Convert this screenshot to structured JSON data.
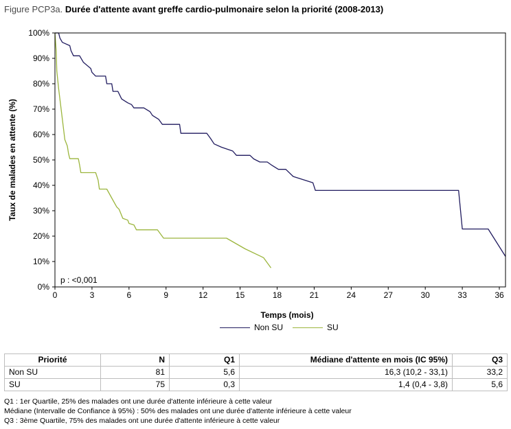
{
  "figure": {
    "label": "Figure PCP3a.",
    "title": "Durée d'attente avant greffe cardio-pulmonaire selon la priorité (2008-2013)"
  },
  "chart_data": {
    "type": "line",
    "title": "Durée d'attente avant greffe cardio-pulmonaire selon la priorité (2008-2013)",
    "xlabel": "Temps (mois)",
    "ylabel": "Taux de malades en attente (%)",
    "xlim": [
      0,
      36.5
    ],
    "ylim": [
      0,
      100
    ],
    "x_ticks": [
      0,
      3,
      6,
      9,
      12,
      15,
      18,
      21,
      24,
      27,
      30,
      33,
      36
    ],
    "y_ticks": [
      0,
      10,
      20,
      30,
      40,
      50,
      60,
      70,
      80,
      90,
      100
    ],
    "y_tick_labels": [
      "0%",
      "10%",
      "20%",
      "30%",
      "40%",
      "50%",
      "60%",
      "70%",
      "80%",
      "90%",
      "100%"
    ],
    "annotation": "p : <0,001",
    "legend_position": "bottom",
    "grid": false,
    "series": [
      {
        "name": "Non SU",
        "color": "#1f1a5e",
        "points": [
          [
            0,
            100
          ],
          [
            0.3,
            100
          ],
          [
            0.4,
            98
          ],
          [
            0.6,
            96.3
          ],
          [
            1.2,
            95
          ],
          [
            1.3,
            93
          ],
          [
            1.5,
            91
          ],
          [
            2.0,
            91
          ],
          [
            2.3,
            88.5
          ],
          [
            2.9,
            86
          ],
          [
            3.0,
            84.5
          ],
          [
            3.3,
            83
          ],
          [
            4.1,
            83
          ],
          [
            4.2,
            80
          ],
          [
            4.6,
            80
          ],
          [
            4.7,
            77
          ],
          [
            5.1,
            77
          ],
          [
            5.4,
            74
          ],
          [
            5.9,
            72.5
          ],
          [
            6.2,
            71.8
          ],
          [
            6.4,
            70.5
          ],
          [
            7.2,
            70.5
          ],
          [
            7.7,
            69
          ],
          [
            7.9,
            67.5
          ],
          [
            8.4,
            66
          ],
          [
            8.7,
            64
          ],
          [
            10.1,
            64
          ],
          [
            10.2,
            60.5
          ],
          [
            12.3,
            60.5
          ],
          [
            12.6,
            58.5
          ],
          [
            12.9,
            56.3
          ],
          [
            13.5,
            55
          ],
          [
            14.4,
            53.5
          ],
          [
            14.7,
            51.8
          ],
          [
            15.8,
            51.8
          ],
          [
            16.1,
            50.4
          ],
          [
            16.6,
            49.2
          ],
          [
            17.2,
            49.2
          ],
          [
            17.6,
            47.8
          ],
          [
            18.1,
            46.3
          ],
          [
            18.7,
            46.3
          ],
          [
            19.3,
            43.5
          ],
          [
            20.9,
            41
          ],
          [
            21.1,
            38
          ],
          [
            32.7,
            38
          ],
          [
            33.0,
            22.8
          ],
          [
            35.1,
            22.8
          ],
          [
            36.5,
            12
          ]
        ]
      },
      {
        "name": "SU",
        "color": "#9bb53c",
        "points": [
          [
            0,
            100
          ],
          [
            0.1,
            93
          ],
          [
            0.15,
            85
          ],
          [
            0.3,
            78
          ],
          [
            0.5,
            70
          ],
          [
            0.7,
            62
          ],
          [
            0.8,
            58
          ],
          [
            1.0,
            55.5
          ],
          [
            1.1,
            52.5
          ],
          [
            1.2,
            50.5
          ],
          [
            1.9,
            50.5
          ],
          [
            2.0,
            48
          ],
          [
            2.1,
            45
          ],
          [
            3.3,
            45
          ],
          [
            3.5,
            42
          ],
          [
            3.6,
            38.5
          ],
          [
            4.2,
            38.5
          ],
          [
            4.6,
            35
          ],
          [
            5.0,
            31.5
          ],
          [
            5.2,
            30.5
          ],
          [
            5.5,
            27
          ],
          [
            5.9,
            26.3
          ],
          [
            6.0,
            25
          ],
          [
            6.4,
            24.4
          ],
          [
            6.6,
            22.5
          ],
          [
            8.3,
            22.5
          ],
          [
            8.8,
            19.2
          ],
          [
            13.9,
            19.2
          ],
          [
            15.4,
            15
          ],
          [
            16.9,
            11.5
          ],
          [
            17.5,
            7.5
          ]
        ]
      }
    ]
  },
  "table": {
    "headers": [
      "Priorité",
      "N",
      "Q1",
      "Médiane d'attente en mois (IC 95%)",
      "Q3"
    ],
    "rows": [
      [
        "Non SU",
        "81",
        "5,6",
        "16,3 (10,2 - 33,1)",
        "33,2"
      ],
      [
        "SU",
        "75",
        "0,3",
        "1,4 (0,4 - 3,8)",
        "5,6"
      ]
    ]
  },
  "footnotes": [
    "Q1 : 1er Quartile, 25% des malades ont une durée d'attente inférieure à cette valeur",
    "Médiane (Intervalle de Confiance à 95%) : 50% des malades ont une durée d'attente inférieure à cette valeur",
    "Q3 : 3ème Quartile, 75% des malades ont une durée d'attente inférieure à cette valeur"
  ]
}
